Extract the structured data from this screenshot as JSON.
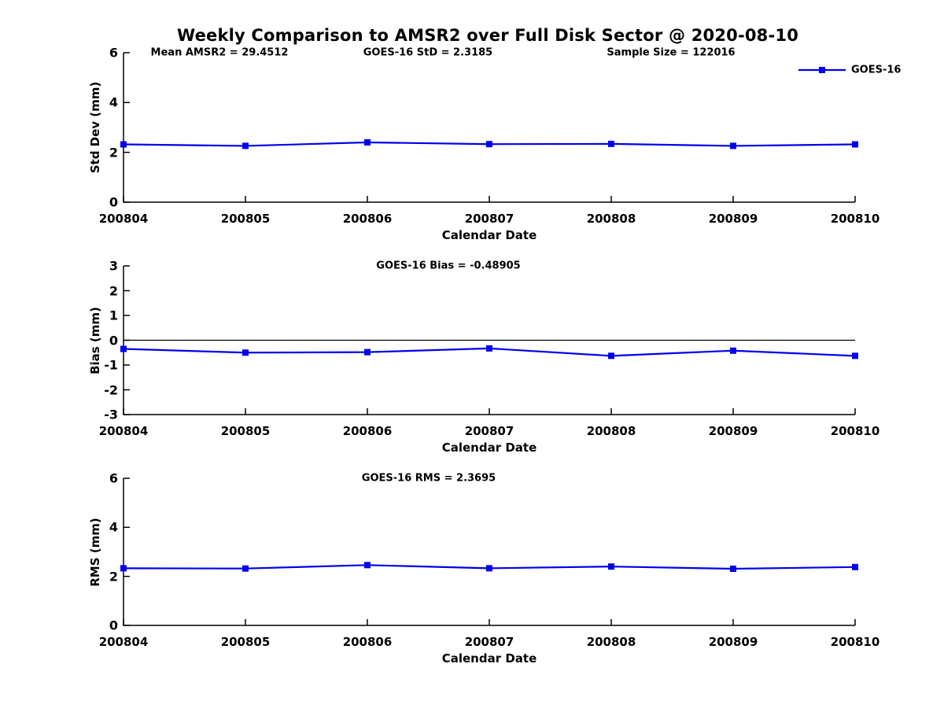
{
  "title": "Weekly Comparison to AMSR2 over Full Disk Sector @ 2020-08-10",
  "legend": {
    "label": "GOES-16",
    "line_color": "#0000ee",
    "marker": "filled-square"
  },
  "colors": {
    "series": "#0000ee",
    "axis": "#000000",
    "zero_line": "#000000"
  },
  "chart_data": [
    {
      "type": "line",
      "panel": "std-dev",
      "annotations": [
        "Mean AMSR2 = 29.4512",
        "GOES-16 StD = 2.3185",
        "Sample Size = 122016"
      ],
      "categories": [
        "200804",
        "200805",
        "200806",
        "200807",
        "200808",
        "200809",
        "200810"
      ],
      "series": [
        {
          "name": "GOES-16",
          "values": [
            2.32,
            2.26,
            2.4,
            2.33,
            2.34,
            2.26,
            2.32
          ]
        }
      ],
      "xlabel": "Calendar Date",
      "ylabel": "Std Dev (mm)",
      "ylim": [
        0,
        6
      ],
      "yticks": [
        6,
        4,
        2,
        0
      ],
      "zero_line": false,
      "grid": false,
      "legend_position": "top-right-outside"
    },
    {
      "type": "line",
      "panel": "bias",
      "annotations": [
        "GOES-16 Bias  = -0.48905"
      ],
      "categories": [
        "200804",
        "200805",
        "200806",
        "200807",
        "200808",
        "200809",
        "200810"
      ],
      "series": [
        {
          "name": "GOES-16",
          "values": [
            -0.35,
            -0.5,
            -0.48,
            -0.33,
            -0.63,
            -0.42,
            -0.63
          ]
        }
      ],
      "xlabel": "Calendar Date",
      "ylabel": "Bias (mm)",
      "ylim": [
        -3,
        3
      ],
      "yticks": [
        3,
        2,
        1,
        0,
        -1,
        -2,
        -3
      ],
      "zero_line": true,
      "grid": false
    },
    {
      "type": "line",
      "panel": "rms",
      "annotations": [
        "GOES-16 RMS = 2.3695"
      ],
      "categories": [
        "200804",
        "200805",
        "200806",
        "200807",
        "200808",
        "200809",
        "200810"
      ],
      "series": [
        {
          "name": "GOES-16",
          "values": [
            2.33,
            2.32,
            2.46,
            2.33,
            2.4,
            2.31,
            2.38
          ]
        }
      ],
      "xlabel": "Calendar Date",
      "ylabel": "RMS (mm)",
      "ylim": [
        0,
        6
      ],
      "yticks": [
        6,
        4,
        2,
        0
      ],
      "zero_line": false,
      "grid": false
    }
  ]
}
